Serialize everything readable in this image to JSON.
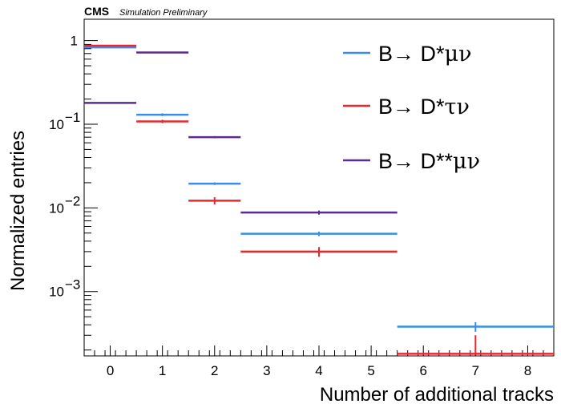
{
  "chart_data": {
    "type": "histogram",
    "experiment": "CMS",
    "experiment_subtitle": "Simulation Preliminary",
    "xlabel": "Number of additional tracks",
    "ylabel": "Normalized entries",
    "xlim": [
      -0.5,
      8.5
    ],
    "ylim": [
      0.00017,
      1.8
    ],
    "yscale": "log",
    "grid": false,
    "x_ticks": [
      "0",
      "1",
      "2",
      "3",
      "4",
      "5",
      "6",
      "7",
      "8"
    ],
    "y_ticks": [
      {
        "value": 1,
        "mantissa": "1",
        "exponent": ""
      },
      {
        "value": 0.1,
        "mantissa": "10",
        "exponent": "−1"
      },
      {
        "value": 0.01,
        "mantissa": "10",
        "exponent": "−2"
      },
      {
        "value": 0.001,
        "mantissa": "10",
        "exponent": "−3"
      }
    ],
    "legend_position": "top-right",
    "series": [
      {
        "name": "B→ D*μν",
        "name_main": "B→ D*",
        "name_greek": "μν",
        "color": "#3a8eea",
        "bins": [
          {
            "lo": -0.5,
            "hi": 0.5,
            "center": 0,
            "value": 0.83,
            "err": 0.01
          },
          {
            "lo": 0.5,
            "hi": 1.5,
            "center": 1,
            "value": 0.13,
            "err": 0.005
          },
          {
            "lo": 1.5,
            "hi": 2.5,
            "center": 2,
            "value": 0.0195,
            "err": 0.0007
          },
          {
            "lo": 2.5,
            "hi": 5.5,
            "center": 4,
            "value": 0.0049,
            "err": 0.0003
          },
          {
            "lo": 5.5,
            "hi": 8.5,
            "center": 7,
            "value": 0.00038,
            "err": 5e-05
          }
        ]
      },
      {
        "name": "B→ D*τν",
        "name_main": "B→ D*",
        "name_greek": "τν",
        "color": "#e8282e",
        "bins": [
          {
            "lo": -0.5,
            "hi": 0.5,
            "center": 0,
            "value": 0.87,
            "err": 0.012
          },
          {
            "lo": 0.5,
            "hi": 1.5,
            "center": 1,
            "value": 0.108,
            "err": 0.005
          },
          {
            "lo": 1.5,
            "hi": 2.5,
            "center": 2,
            "value": 0.0122,
            "err": 0.0012
          },
          {
            "lo": 2.5,
            "hi": 5.5,
            "center": 4,
            "value": 0.003,
            "err": 0.0004
          },
          {
            "lo": 5.5,
            "hi": 8.5,
            "center": 7,
            "value": 0.00018,
            "err": 0.00012
          }
        ]
      },
      {
        "name": "B→ D**μν",
        "name_main": "B→ D**",
        "name_greek": "μν",
        "color": "#5b2c8a",
        "bins": [
          {
            "lo": -0.5,
            "hi": 0.5,
            "center": 0,
            "value": 0.18,
            "err": 0.003
          },
          {
            "lo": 0.5,
            "hi": 1.5,
            "center": 1,
            "value": 0.72,
            "err": 0.006
          },
          {
            "lo": 1.5,
            "hi": 2.5,
            "center": 2,
            "value": 0.07,
            "err": 0.002
          },
          {
            "lo": 2.5,
            "hi": 5.5,
            "center": 4,
            "value": 0.0088,
            "err": 0.0005
          }
        ]
      }
    ]
  }
}
